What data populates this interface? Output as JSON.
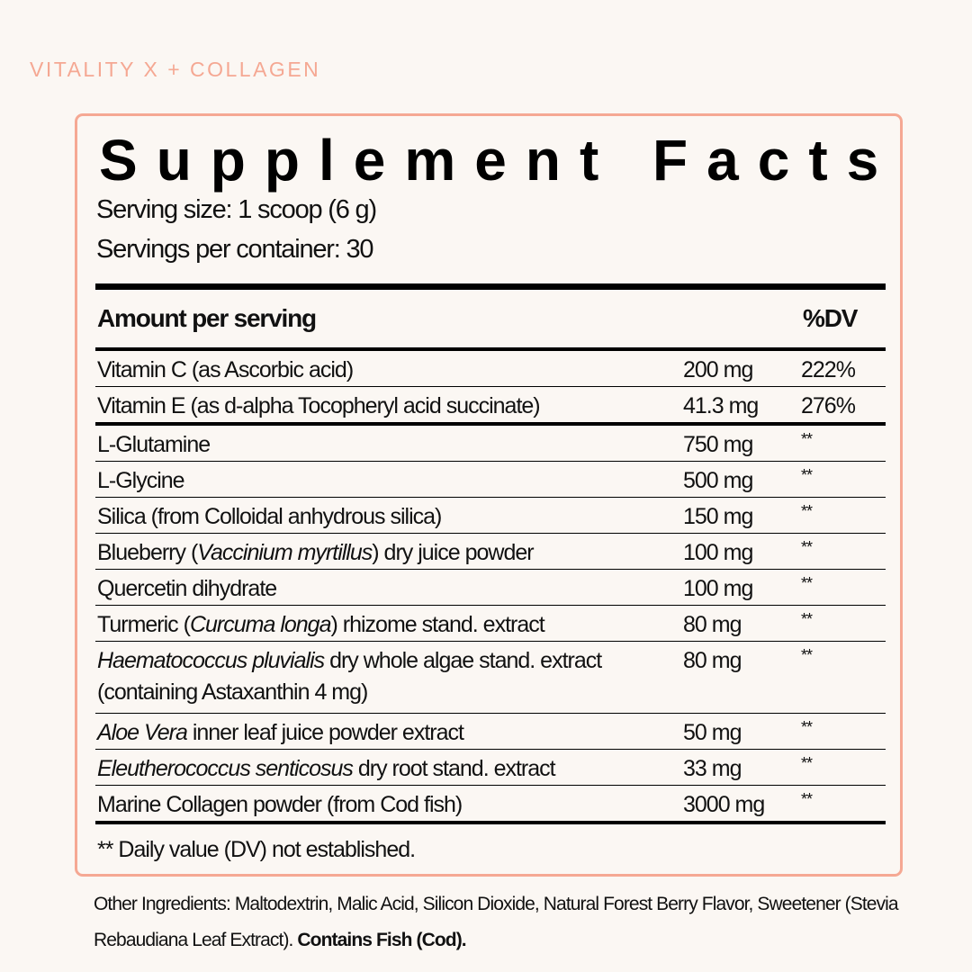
{
  "brand": "VITALITY X + COLLAGEN",
  "colors": {
    "accent": "#f5a893",
    "background": "#fbf7f3"
  },
  "title": "Supplement Facts",
  "serving_size": "Serving size: 1 scoop (6 g)",
  "servings_per_container": "Servings per container: 30",
  "header": {
    "amount": "Amount per serving",
    "dv": "%DV"
  },
  "vitamins": [
    {
      "name": "Vitamin C (as Ascorbic acid)",
      "amount": "200 mg",
      "dv": "222%"
    },
    {
      "name": "Vitamin E (as d-alpha Tocopheryl acid succinate)",
      "amount": "41.3 mg",
      "dv": "276%"
    }
  ],
  "ingredients": [
    {
      "name": "L-Glutamine",
      "amount": "750 mg",
      "dv": "**"
    },
    {
      "name": "L-Glycine",
      "amount": "500 mg",
      "dv": "**"
    },
    {
      "name": "Silica (from Colloidal anhydrous silica)",
      "amount": "150 mg",
      "dv": "**"
    },
    {
      "pre": "Blueberry (",
      "italic": "Vaccinium myrtillus",
      "post": ") dry juice powder",
      "amount": "100 mg",
      "dv": "**"
    },
    {
      "name": "Quercetin dihydrate",
      "amount": "100 mg",
      "dv": "**"
    },
    {
      "pre": "Turmeric (",
      "italic": "Curcuma longa",
      "post": ") rhizome stand. extract",
      "amount": "80 mg",
      "dv": "**"
    },
    {
      "italic": "Haematococcus pluvialis",
      "post": " dry whole algae stand. extract",
      "line2": "(containing Astaxanthin 4 mg)",
      "amount": "80 mg",
      "dv": "**"
    },
    {
      "italic": "Aloe Vera",
      "post": " inner leaf juice powder extract",
      "amount": "50 mg",
      "dv": "**"
    },
    {
      "italic": "Eleutherococcus senticosus",
      "post": " dry root stand. extract",
      "amount": "33 mg",
      "dv": "**"
    },
    {
      "name": "Marine Collagen powder (from Cod fish)",
      "amount": "3000 mg",
      "dv": "**"
    }
  ],
  "footnote": "** Daily value (DV) not established.",
  "other_ingredients": {
    "text": "Other Ingredients: Maltodextrin, Malic Acid, Silicon Dioxide, Natural Forest Berry Flavor, Sweetener (Stevia Rebaudiana Leaf Extract). ",
    "bold": "Contains Fish (Cod)."
  }
}
